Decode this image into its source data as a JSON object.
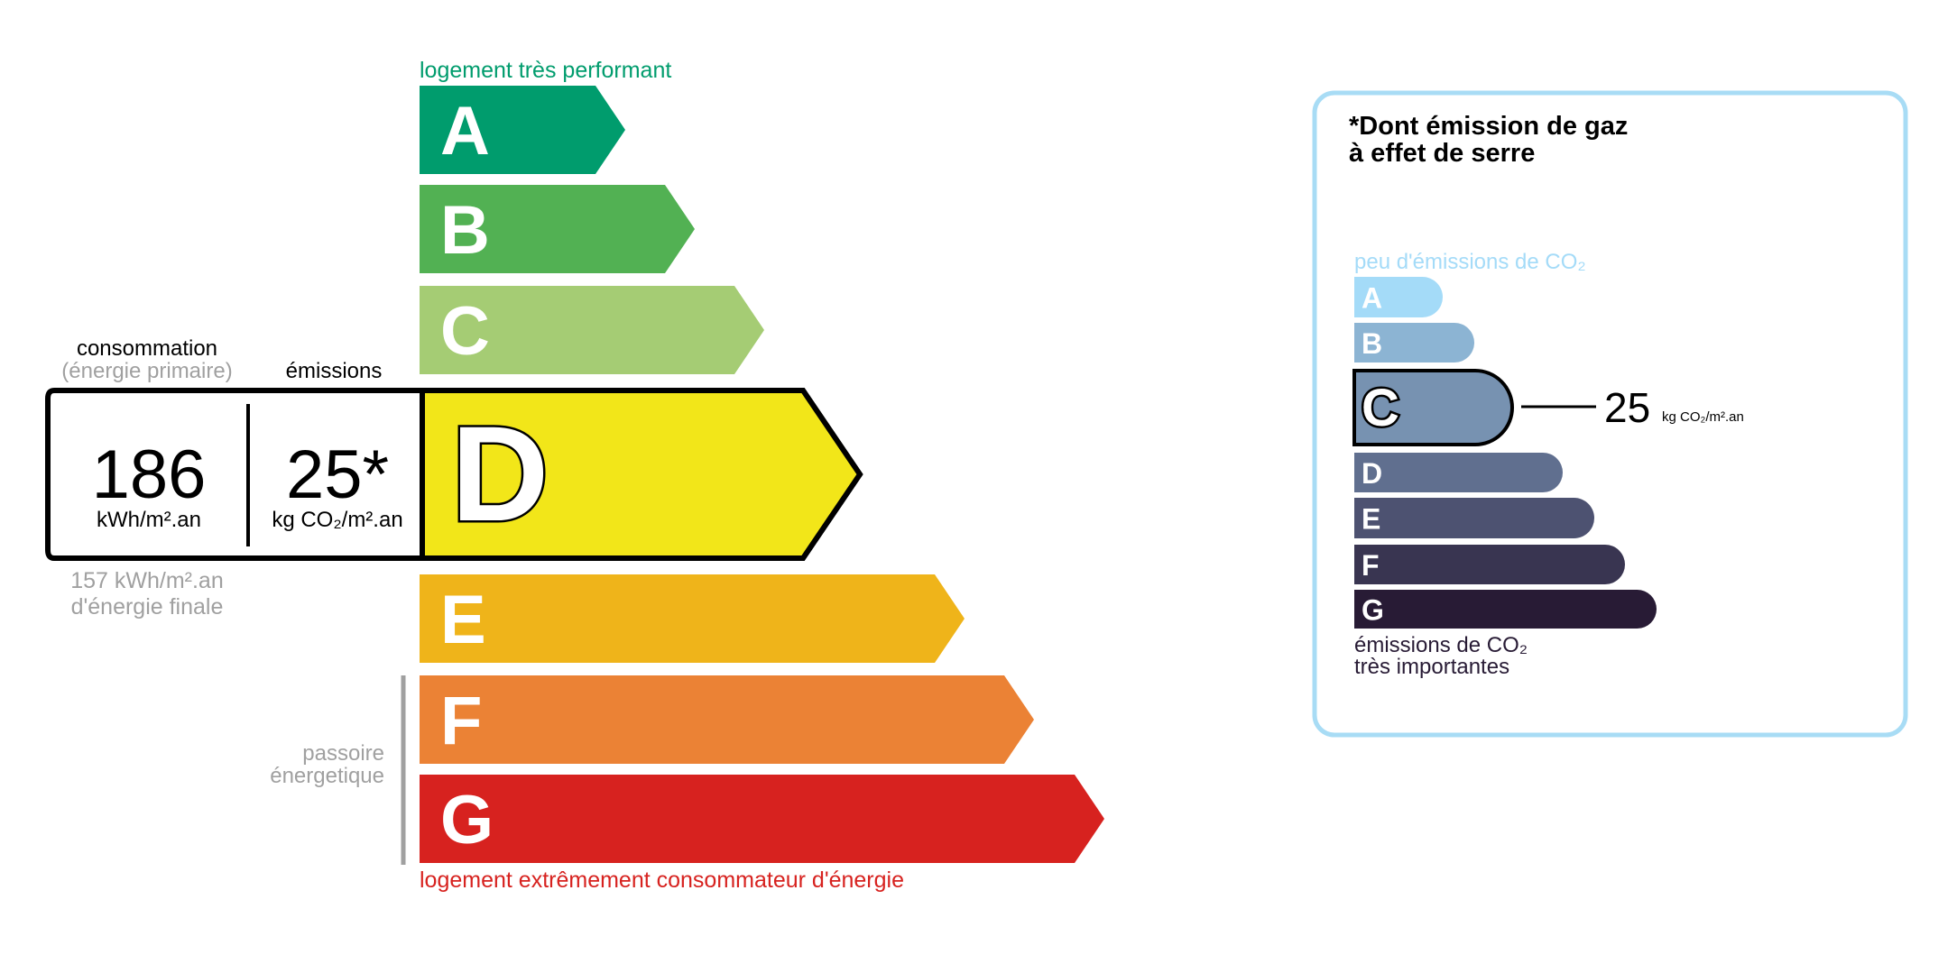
{
  "energy": {
    "top_label": "logement très performant",
    "bottom_label": "logement extrêmement consommateur d'énergie",
    "passoire": [
      "passoire",
      "énergetique"
    ],
    "classes": [
      "A",
      "B",
      "C",
      "D",
      "E",
      "F",
      "G"
    ],
    "current_class": "D",
    "colors": [
      "#009c6d",
      "#52b153",
      "#a5cc74",
      "#f2e619",
      "#efb41a",
      "#eb8235",
      "#d7221f"
    ],
    "consumption_header": "consommation",
    "consumption_sub": "(énergie primaire)",
    "emissions_header": "émissions",
    "consumption_value": "186",
    "consumption_unit": "kWh/m².an",
    "emissions_value": "25*",
    "emissions_unit": "kg CO₂/m².an",
    "final_energy": "157 kWh/m².an",
    "final_energy_label": "d'énergie finale"
  },
  "ges": {
    "title_line1": "*Dont émission de gaz",
    "title_line2": "à effet de serre",
    "top_label": "peu d'émissions de CO₂",
    "bottom_line1": "émissions de CO₂",
    "bottom_line2": "très importantes",
    "classes": [
      "A",
      "B",
      "C",
      "D",
      "E",
      "F",
      "G"
    ],
    "current_class": "C",
    "colors": [
      "#a4dbf8",
      "#8cb4d3",
      "#7792b1",
      "#606f8f",
      "#4d5271",
      "#393551",
      "#281b35"
    ],
    "value": "25",
    "unit": "kg CO₂/m².an",
    "border_color": "#a8dcf5"
  }
}
